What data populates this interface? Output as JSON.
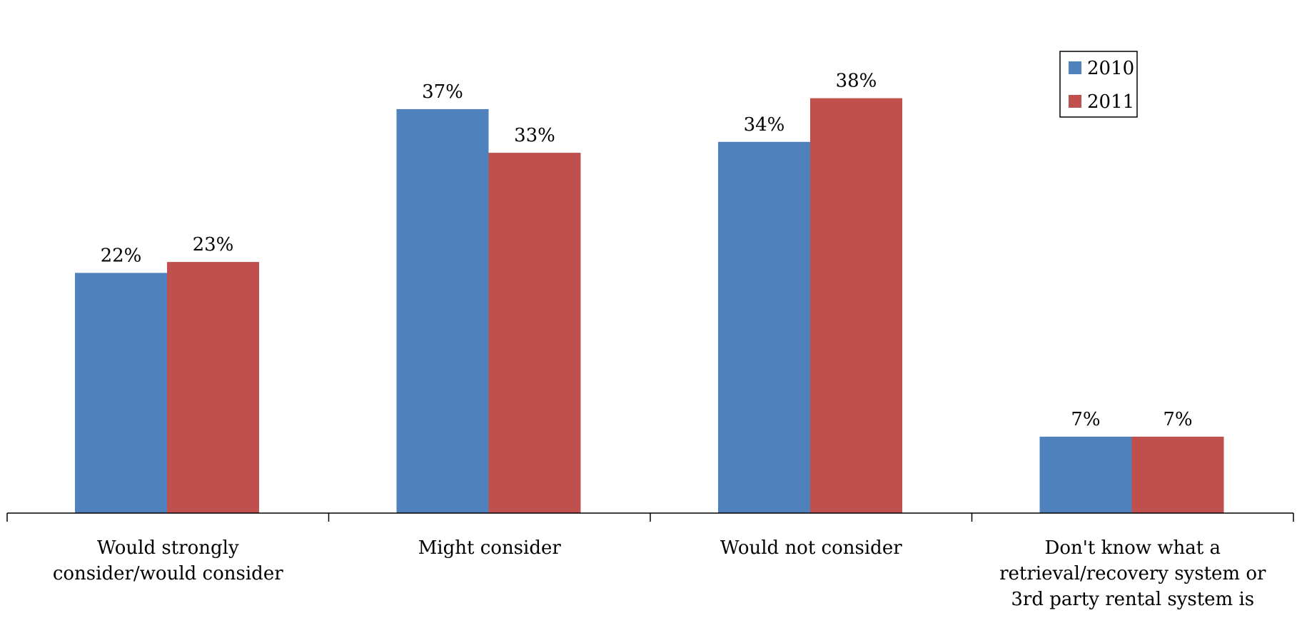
{
  "chart_data": {
    "type": "bar",
    "categories": [
      [
        "Would strongly",
        "consider/would consider"
      ],
      [
        "Might consider"
      ],
      [
        "Would not consider"
      ],
      [
        "Don't know what a",
        "retrieval/recovery system or",
        "3rd party rental system is"
      ]
    ],
    "series": [
      {
        "name": "2010",
        "color": "#4F81BD",
        "values": [
          22,
          37,
          34,
          7
        ],
        "labels": [
          "22%",
          "37%",
          "34%",
          "7%"
        ]
      },
      {
        "name": "2011",
        "color": "#C0504D",
        "values": [
          23,
          33,
          38,
          7
        ],
        "labels": [
          "23%",
          "33%",
          "38%",
          "7%"
        ]
      }
    ],
    "ylim": [
      0,
      40
    ],
    "grid": false,
    "legend_position": "top-right",
    "title": "",
    "xlabel": "",
    "ylabel": ""
  }
}
